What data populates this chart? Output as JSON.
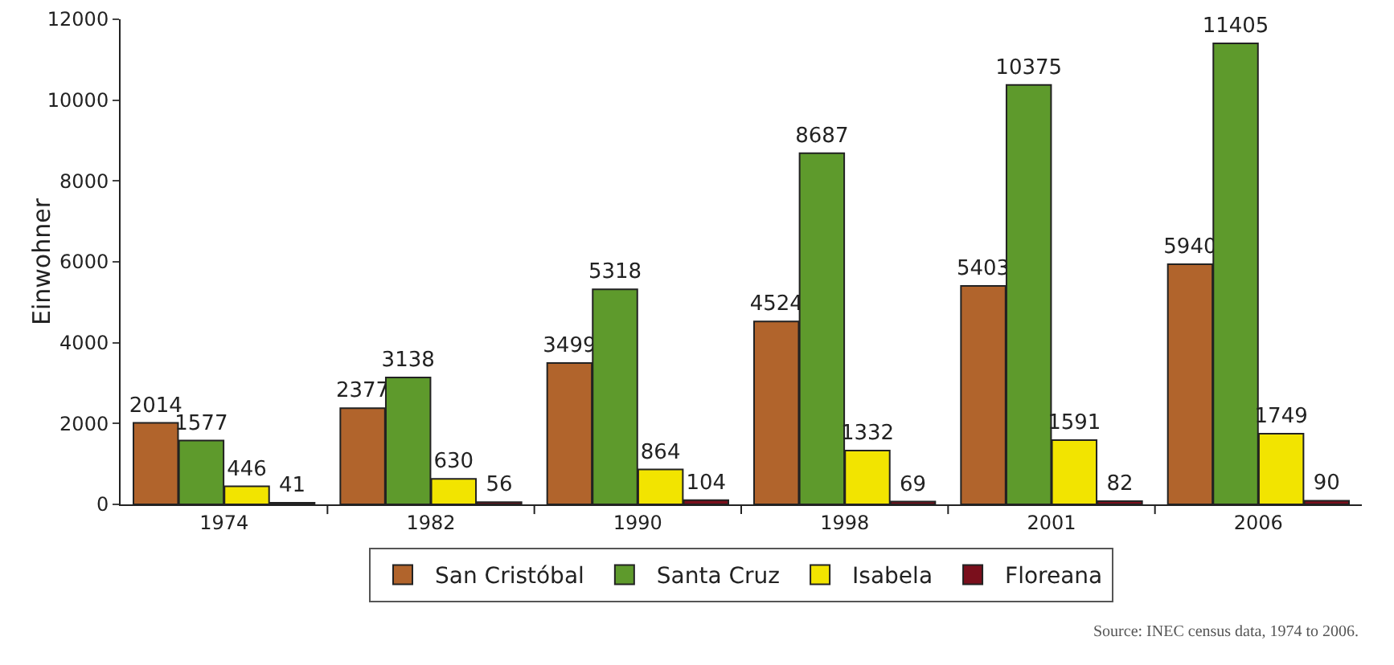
{
  "chart_data": {
    "type": "bar",
    "ylabel": "Einwohner",
    "categories": [
      "1974",
      "1982",
      "1990",
      "1998",
      "2001",
      "2006"
    ],
    "series": [
      {
        "name": "San Cristóbal",
        "color": "#b1642c",
        "values": [
          2014,
          2377,
          3499,
          4524,
          5403,
          5940
        ]
      },
      {
        "name": "Santa Cruz",
        "color": "#5e9a2c",
        "values": [
          1577,
          3138,
          5318,
          8687,
          10375,
          11405
        ]
      },
      {
        "name": "Isabela",
        "color": "#f2e400",
        "values": [
          446,
          630,
          864,
          1332,
          1591,
          1749
        ]
      },
      {
        "name": "Floreana",
        "color": "#7a0f1c",
        "values": [
          41,
          56,
          104,
          69,
          82,
          90
        ]
      }
    ],
    "ylim": [
      0,
      12000
    ],
    "yticks": [
      0,
      2000,
      4000,
      6000,
      8000,
      10000,
      12000
    ],
    "grid": false,
    "legend": "bottom",
    "data_labels": true,
    "annotations": [
      "Source: INEC census data, 1974 to 2006."
    ]
  }
}
